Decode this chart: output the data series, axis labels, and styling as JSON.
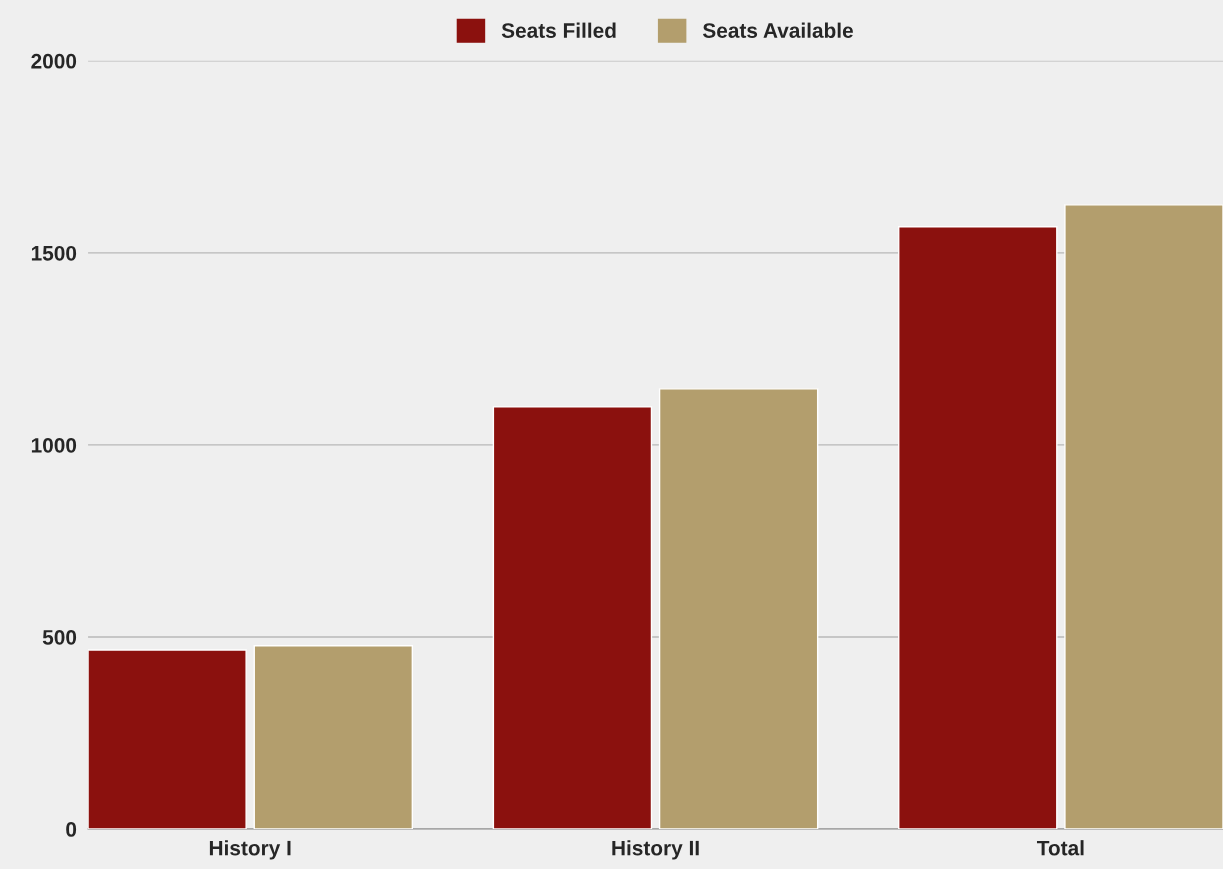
{
  "chart_data": {
    "type": "bar",
    "categories": [
      "History I",
      "History II",
      "Total"
    ],
    "series": [
      {
        "name": "Seats Filled",
        "color": "#8b110e",
        "values": [
          466,
          1099,
          1568
        ]
      },
      {
        "name": "Seats Available",
        "color": "#b39e6d",
        "values": [
          477,
          1146,
          1625
        ]
      }
    ],
    "ylim": [
      0,
      2000
    ],
    "yticks": [
      0,
      500,
      1000,
      1500,
      2000
    ],
    "grid": "y",
    "legend": "top"
  }
}
